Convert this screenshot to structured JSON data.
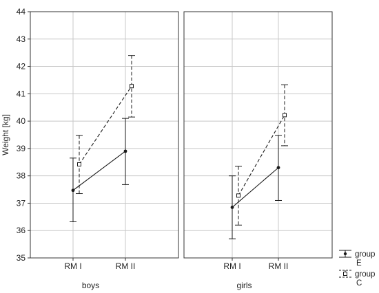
{
  "chart_data": {
    "type": "line",
    "ylabel": "Weight [kg]",
    "ylim": [
      35,
      44
    ],
    "yticks": [
      "35",
      "36",
      "37",
      "38",
      "39",
      "40",
      "41",
      "42",
      "43",
      "44"
    ],
    "grid": true,
    "legend_position": "bottom-right",
    "categories": [
      "RM I",
      "RM II"
    ],
    "legend": [
      {
        "name_line1": "group",
        "name_line2": "E",
        "marker": "filled-circle",
        "line_style": "solid"
      },
      {
        "name_line1": "group",
        "name_line2": "C",
        "marker": "open-square",
        "line_style": "dashed"
      }
    ],
    "panels": [
      {
        "title": "boys",
        "series": [
          {
            "name": "group E",
            "values": [
              37.47,
              38.9
            ],
            "err_low": [
              36.32,
              37.68
            ],
            "err_high": [
              38.65,
              40.1
            ]
          },
          {
            "name": "group C",
            "values": [
              38.42,
              41.28
            ],
            "err_low": [
              37.35,
              40.15
            ],
            "err_high": [
              39.48,
              42.4
            ]
          }
        ]
      },
      {
        "title": "girls",
        "series": [
          {
            "name": "group E",
            "values": [
              36.85,
              38.3
            ],
            "err_low": [
              35.7,
              37.1
            ],
            "err_high": [
              38.0,
              39.48
            ]
          },
          {
            "name": "group C",
            "values": [
              37.28,
              40.22
            ],
            "err_low": [
              36.2,
              39.1
            ],
            "err_high": [
              38.35,
              41.33
            ]
          }
        ]
      }
    ]
  }
}
